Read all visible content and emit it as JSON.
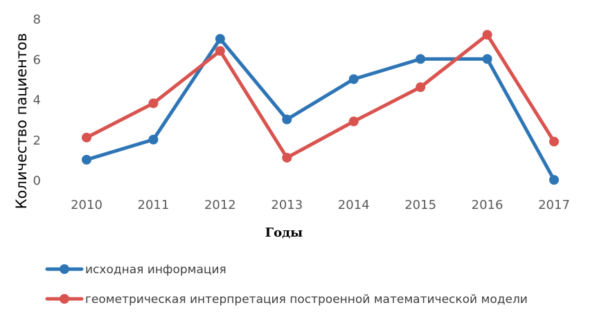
{
  "chart_data": {
    "type": "line",
    "title": "",
    "xlabel": "Годы",
    "ylabel": "Количество пациентов",
    "categories": [
      "2010",
      "2011",
      "2012",
      "2013",
      "2014",
      "2015",
      "2016",
      "2017"
    ],
    "ylim": [
      0,
      8
    ],
    "yticks": [
      "0",
      "2",
      "4",
      "6",
      "8"
    ],
    "grid": false,
    "legend_position": "bottom-left",
    "series": [
      {
        "name": "исходная информация",
        "color": "#2E75B6",
        "values": [
          1,
          2,
          7,
          3,
          5,
          6,
          6,
          0
        ]
      },
      {
        "name": "геометрическая интерпретация построенной математической модели",
        "color": "#D9534F",
        "values": [
          2.1,
          3.8,
          6.4,
          1.1,
          2.9,
          4.6,
          7.2,
          1.9
        ]
      }
    ]
  }
}
